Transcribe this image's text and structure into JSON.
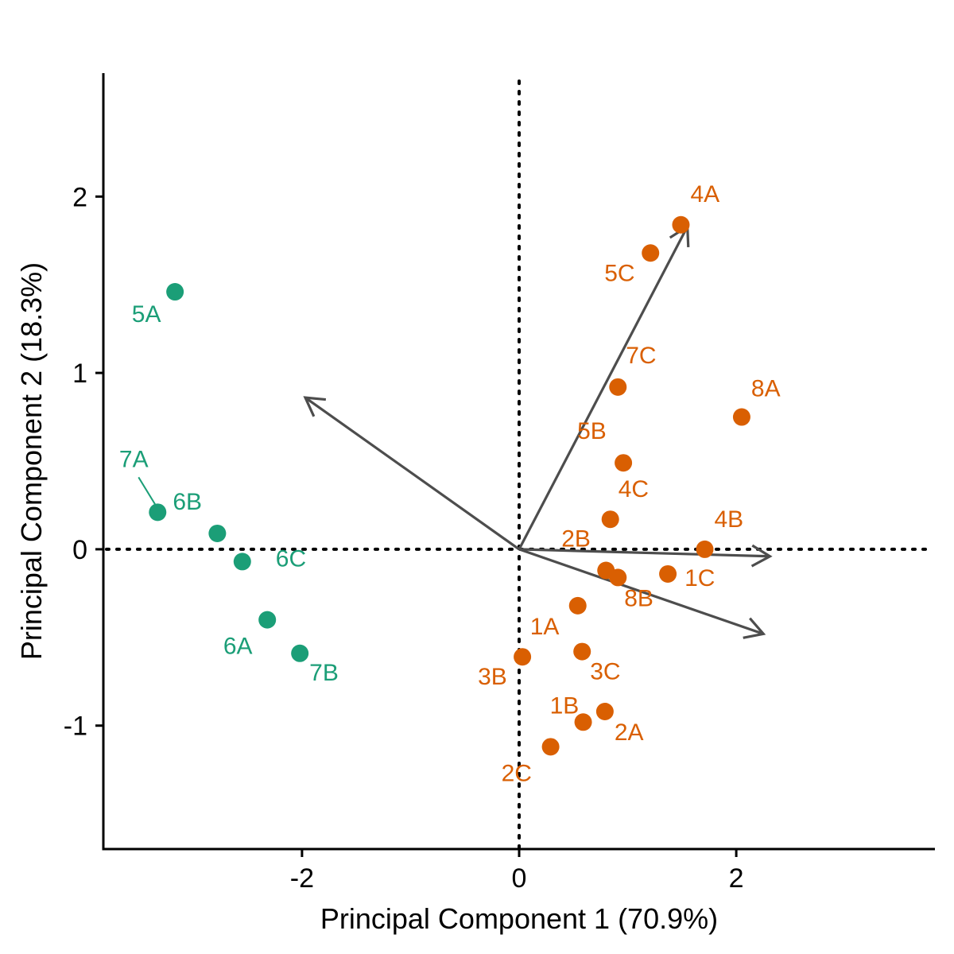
{
  "chart_data": {
    "type": "scatter",
    "title": "",
    "xlabel": "Principal Component 1 (70.9%)",
    "ylabel": "Principal Component 2 (18.3%)",
    "xlim": [
      -3.83,
      3.83
    ],
    "ylim": [
      -1.7,
      2.7
    ],
    "x_ticks": [
      {
        "value": -2,
        "label": "-2"
      },
      {
        "value": 0,
        "label": "0"
      },
      {
        "value": 2,
        "label": "2"
      }
    ],
    "y_ticks": [
      {
        "value": -1,
        "label": "-1"
      },
      {
        "value": 0,
        "label": "0"
      },
      {
        "value": 1,
        "label": "1"
      },
      {
        "value": 2,
        "label": "2"
      }
    ],
    "grid": false,
    "reference_lines": [
      {
        "axis": "x",
        "value": 0,
        "style": "dotted"
      },
      {
        "axis": "y",
        "value": 0,
        "style": "dotted"
      }
    ],
    "series": [
      {
        "color": "#1b9e77",
        "points": [
          {
            "label": "5A",
            "x": -3.17,
            "y": 1.46
          },
          {
            "label": "7A",
            "x": -3.33,
            "y": 0.21
          },
          {
            "label": "6B",
            "x": -2.78,
            "y": 0.09
          },
          {
            "label": "6C",
            "x": -2.55,
            "y": -0.07
          },
          {
            "label": "6A",
            "x": -2.32,
            "y": -0.4
          },
          {
            "label": "7B",
            "x": -2.02,
            "y": -0.59
          }
        ]
      },
      {
        "color": "#d95f02",
        "points": [
          {
            "label": "4A",
            "x": 1.49,
            "y": 1.84
          },
          {
            "label": "5C",
            "x": 1.21,
            "y": 1.68
          },
          {
            "label": "7C",
            "x": 0.91,
            "y": 0.92
          },
          {
            "label": "8A",
            "x": 2.05,
            "y": 0.75
          },
          {
            "label": "5B",
            "x": 0.96,
            "y": 0.49
          },
          {
            "label": "4C",
            "x": 0.84,
            "y": 0.17
          },
          {
            "label": "4B",
            "x": 1.71,
            "y": 0.0
          },
          {
            "label": "2B",
            "x": 0.8,
            "y": -0.12
          },
          {
            "label": "8B",
            "x": 0.91,
            "y": -0.16
          },
          {
            "label": "1C",
            "x": 1.37,
            "y": -0.14
          },
          {
            "label": "1A",
            "x": 0.54,
            "y": -0.32
          },
          {
            "label": "3C",
            "x": 0.58,
            "y": -0.58
          },
          {
            "label": "3B",
            "x": 0.03,
            "y": -0.61
          },
          {
            "label": "2A",
            "x": 0.79,
            "y": -0.92
          },
          {
            "label": "1B",
            "x": 0.59,
            "y": -0.98
          },
          {
            "label": "2C",
            "x": 0.29,
            "y": -1.12
          }
        ]
      }
    ],
    "loading_vectors": [
      {
        "x_end": -1.97,
        "y_end": 0.86
      },
      {
        "x_end": 1.55,
        "y_end": 1.83
      },
      {
        "x_end": 2.31,
        "y_end": -0.04
      },
      {
        "x_end": 2.25,
        "y_end": -0.48
      }
    ],
    "colors": {
      "axis": "#000000",
      "vector": "#4d4d4d"
    }
  }
}
